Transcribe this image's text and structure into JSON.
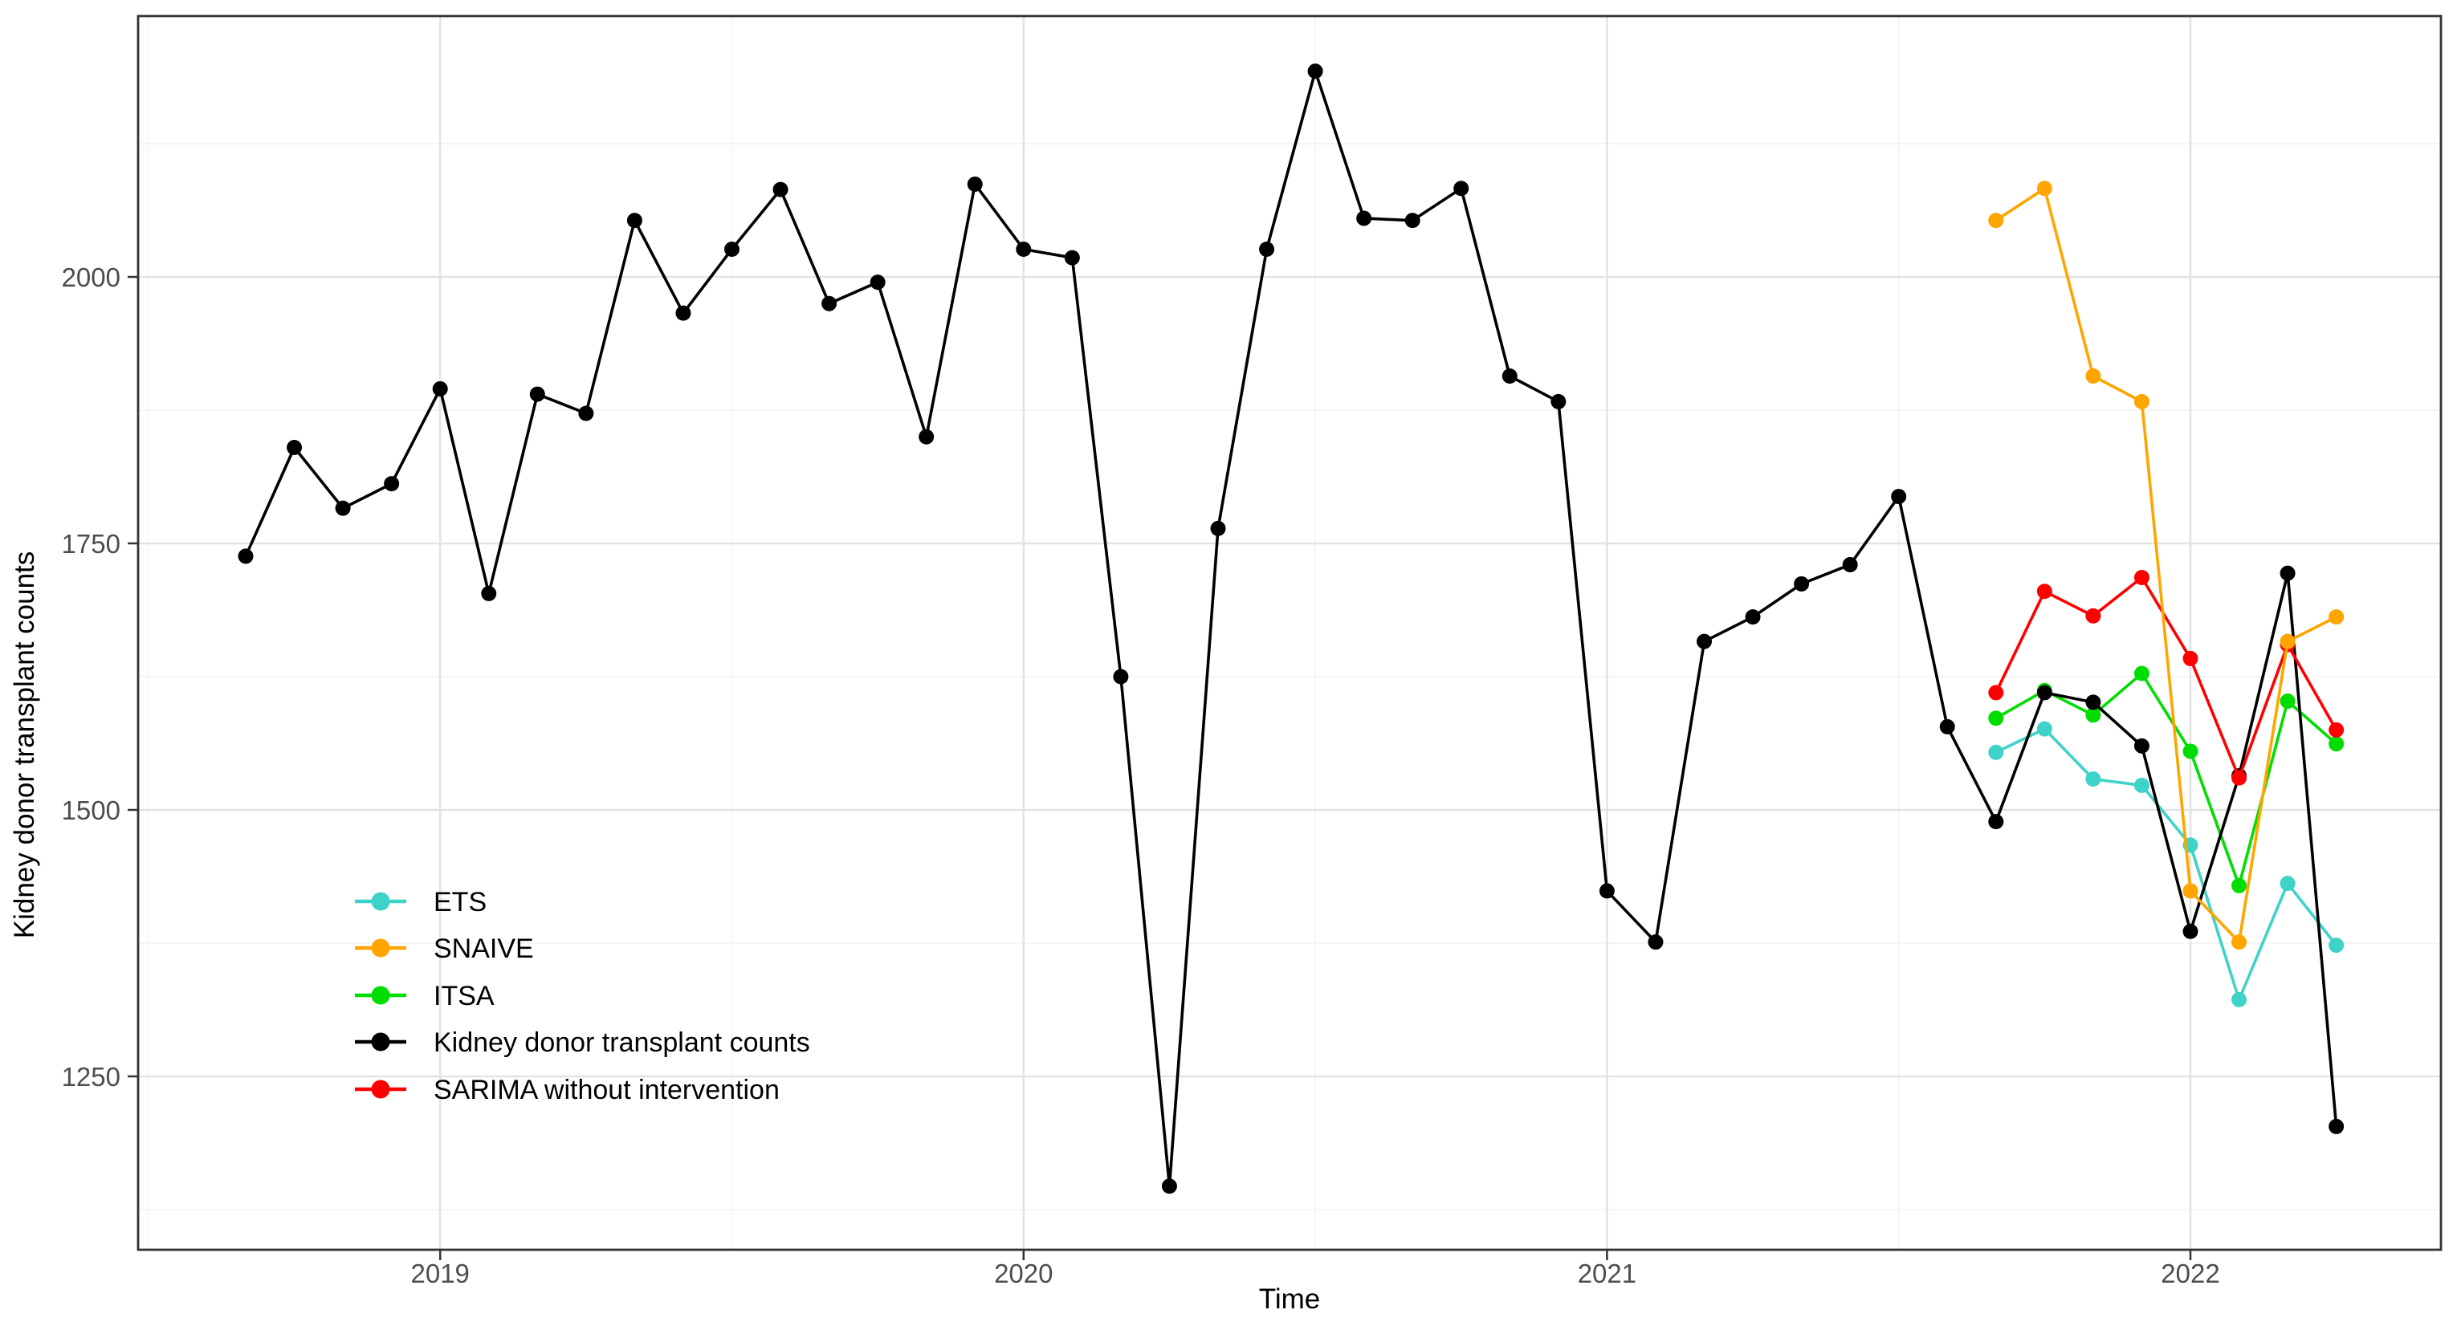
{
  "chart_data": {
    "type": "line",
    "title": "",
    "xlabel": "Time",
    "ylabel": "Kidney donor transplant counts",
    "x_tick_labels": [
      "2019",
      "2020",
      "2021",
      "2022"
    ],
    "x_tick_month_index": [
      4,
      16,
      28,
      40
    ],
    "x_minor_month_index": [
      -2,
      10,
      22,
      34
    ],
    "y_ticks": [
      1250,
      1500,
      1750,
      2000
    ],
    "y_minor_ticks": [
      1125,
      1375,
      1625,
      1875,
      2125
    ],
    "ylim": [
      1087,
      2245
    ],
    "xlim_months": [
      "2018-07",
      "2022-06"
    ],
    "grid": true,
    "legend_position": "inside-left-bottom",
    "months": [
      "2018-09",
      "2018-10",
      "2018-11",
      "2018-12",
      "2019-01",
      "2019-02",
      "2019-03",
      "2019-04",
      "2019-05",
      "2019-06",
      "2019-07",
      "2019-08",
      "2019-09",
      "2019-10",
      "2019-11",
      "2019-12",
      "2020-01",
      "2020-02",
      "2020-03",
      "2020-04",
      "2020-05",
      "2020-06",
      "2020-07",
      "2020-08",
      "2020-09",
      "2020-10",
      "2020-11",
      "2020-12",
      "2021-01",
      "2021-02",
      "2021-03",
      "2021-04",
      "2021-05",
      "2021-06",
      "2021-07",
      "2021-08",
      "2021-09",
      "2021-10",
      "2021-11",
      "2021-12",
      "2022-01",
      "2022-02",
      "2022-03",
      "2022-04"
    ],
    "series": [
      {
        "name": "ETS",
        "color": "#3fd2c8",
        "start_index": 36,
        "values": [
          1554,
          1576,
          1529,
          1523,
          1467,
          1322,
          1431,
          1373
        ]
      },
      {
        "name": "ITSA",
        "color": "#00dd00",
        "start_index": 36,
        "values": [
          1586,
          1612,
          1589,
          1628,
          1555,
          1429,
          1602,
          1562
        ]
      },
      {
        "name": "Kidney donor transplant counts",
        "color": "#000000",
        "start_index": 0,
        "values": [
          1738,
          1840,
          1783,
          1806,
          1895,
          1703,
          1890,
          1872,
          2053,
          1966,
          2026,
          2082,
          1975,
          1995,
          1850,
          2087,
          2026,
          2018,
          1625,
          1147,
          1764,
          2026,
          2193,
          2055,
          2053,
          2083,
          1907,
          1883,
          1424,
          1376,
          1658,
          1681,
          1712,
          1730,
          1794,
          1578,
          1489,
          1610,
          1601,
          1560,
          1386,
          1532,
          1722,
          1203
        ]
      },
      {
        "name": "SARIMA without intervention",
        "color": "#ff0000",
        "start_index": 36,
        "values": [
          1610,
          1705,
          1682,
          1718,
          1642,
          1530,
          1655,
          1575
        ]
      },
      {
        "name": "SNAIVE",
        "color": "#ffa500",
        "start_index": 36,
        "values": [
          2053,
          2083,
          1907,
          1883,
          1424,
          1376,
          1658,
          1681
        ]
      }
    ],
    "legend": [
      {
        "label": "ETS",
        "color": "#3fd2c8"
      },
      {
        "label": " SNAIVE",
        "color": "#ffa500"
      },
      {
        "label": "ITSA",
        "color": "#00dd00"
      },
      {
        "label": "Kidney donor transplant counts",
        "color": "#000000"
      },
      {
        "label": "SARIMA without intervention",
        "color": "#ff0000"
      }
    ],
    "style": {
      "panel_border_color": "#333333",
      "grid_major_color": "#e3e3e3",
      "grid_minor_color": "#f5f5f5",
      "tick_color": "#333333",
      "tick_label_color": "#4d4d4d"
    }
  }
}
